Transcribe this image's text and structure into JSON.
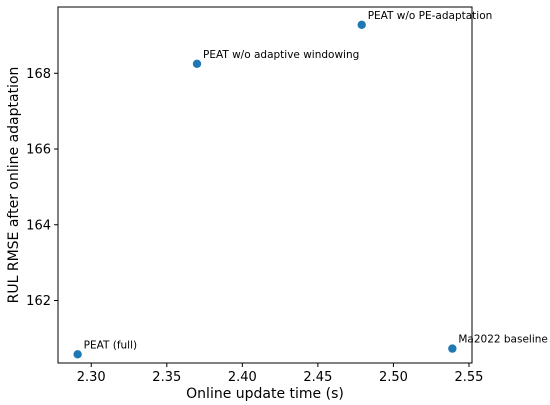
{
  "chart_data": {
    "type": "scatter",
    "title": "",
    "xlabel": "Online update time (s)",
    "ylabel": "RUL RMSE after online adaptation",
    "xlim": [
      2.278,
      2.552
    ],
    "ylim": [
      160.35,
      169.75
    ],
    "xticks": [
      2.3,
      2.35,
      2.4,
      2.45,
      2.5,
      2.55
    ],
    "xtick_labels": [
      "2.30",
      "2.35",
      "2.40",
      "2.45",
      "2.50",
      "2.55"
    ],
    "yticks": [
      162,
      164,
      166,
      168
    ],
    "ytick_labels": [
      "162",
      "164",
      "166",
      "168"
    ],
    "grid": false,
    "legend": "none",
    "point_color": "#1f77b4",
    "points": [
      {
        "label": "PEAT (full)",
        "x": 2.291,
        "y": 160.58
      },
      {
        "label": "PEAT w/o adaptive windowing",
        "x": 2.37,
        "y": 168.25
      },
      {
        "label": "PEAT w/o PE-adaptation",
        "x": 2.479,
        "y": 169.28
      },
      {
        "label": "Ma2022 baseline",
        "x": 2.539,
        "y": 160.73
      }
    ]
  }
}
